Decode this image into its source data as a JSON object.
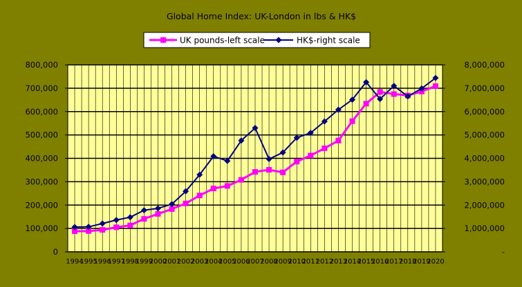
{
  "chart_data": {
    "type": "line",
    "title": "Global Home Index: UK-London in lbs & HK$",
    "years": [
      1994,
      1995,
      1996,
      1997,
      1998,
      1999,
      2000,
      2001,
      2002,
      2003,
      2004,
      2005,
      2006,
      2007,
      2008,
      2009,
      2010,
      2011,
      2012,
      2013,
      2014,
      2015,
      2016,
      2017,
      2018,
      2019,
      2020
    ],
    "x_tick_labels": [
      "1994",
      "1995",
      "1996",
      "1997",
      "1998",
      "1999",
      "2000",
      "2001",
      "2002",
      "2003",
      "2004",
      "2005",
      "2006",
      "2007",
      "2008",
      "2009",
      "2010",
      "2011",
      "2012",
      "2013",
      "2014",
      "2015",
      "2016",
      "2017",
      "2018",
      "2019",
      "2020"
    ],
    "left_axis": {
      "range": [
        0,
        800000
      ],
      "ticks": [
        0,
        100000,
        200000,
        300000,
        400000,
        500000,
        600000,
        700000,
        800000
      ],
      "tick_labels": [
        "0",
        "100,000",
        "200,000",
        "300,000",
        "400,000",
        "500,000",
        "600,000",
        "700,000",
        "800,000"
      ]
    },
    "right_axis": {
      "range": [
        0,
        8000000
      ],
      "ticks": [
        0,
        1000000,
        2000000,
        3000000,
        4000000,
        5000000,
        6000000,
        7000000,
        8000000
      ],
      "tick_labels": [
        "-",
        "1,000,000",
        "2,000,000",
        "3,000,000",
        "4,000,000",
        "5,000,000",
        "6,000,000",
        "7,000,000",
        "8,000,000"
      ]
    },
    "grid": true,
    "legend_position": "top",
    "series": [
      {
        "name": "UK pounds-left scale",
        "axis": "left",
        "color": "#FF00FF",
        "marker": "square",
        "x": [
          1994,
          1995,
          1996,
          1997,
          1998,
          1999,
          2000,
          2001,
          2002,
          2003,
          2004,
          2005,
          2006,
          2007,
          2008,
          2009,
          2010,
          2011,
          2012,
          2013,
          2014,
          2015,
          2016,
          2017,
          2018,
          2019,
          2020
        ],
        "values": [
          88000,
          89000,
          94000,
          105000,
          113000,
          141000,
          162000,
          183000,
          207000,
          241000,
          271000,
          282000,
          308000,
          342000,
          351000,
          340000,
          386000,
          412000,
          443000,
          476000,
          559000,
          634000,
          684000,
          675000,
          669000,
          686000,
          709000
        ]
      },
      {
        "name": "HK$-right scale",
        "axis": "right",
        "color": "#000080",
        "marker": "diamond",
        "x": [
          1994,
          1995,
          1996,
          1997,
          1998,
          1999,
          2000,
          2001,
          2002,
          2003,
          2004,
          2005,
          2006,
          2007,
          2008,
          2009,
          2010,
          2011,
          2012,
          2013,
          2014,
          2015,
          2016,
          2017,
          2018,
          2019,
          2020
        ],
        "values": [
          1060000,
          1070000,
          1210000,
          1360000,
          1480000,
          1780000,
          1860000,
          2040000,
          2590000,
          3300000,
          4090000,
          3890000,
          4760000,
          5300000,
          3970000,
          4250000,
          4880000,
          5090000,
          5580000,
          6080000,
          6510000,
          7260000,
          6540000,
          7100000,
          6650000,
          6990000,
          7440000
        ]
      }
    ]
  },
  "colors": {
    "background": "#808000",
    "plot_area": "#FFFF99",
    "gridline": "#000000",
    "uk_series": "#FF00FF",
    "hk_series": "#000080"
  }
}
